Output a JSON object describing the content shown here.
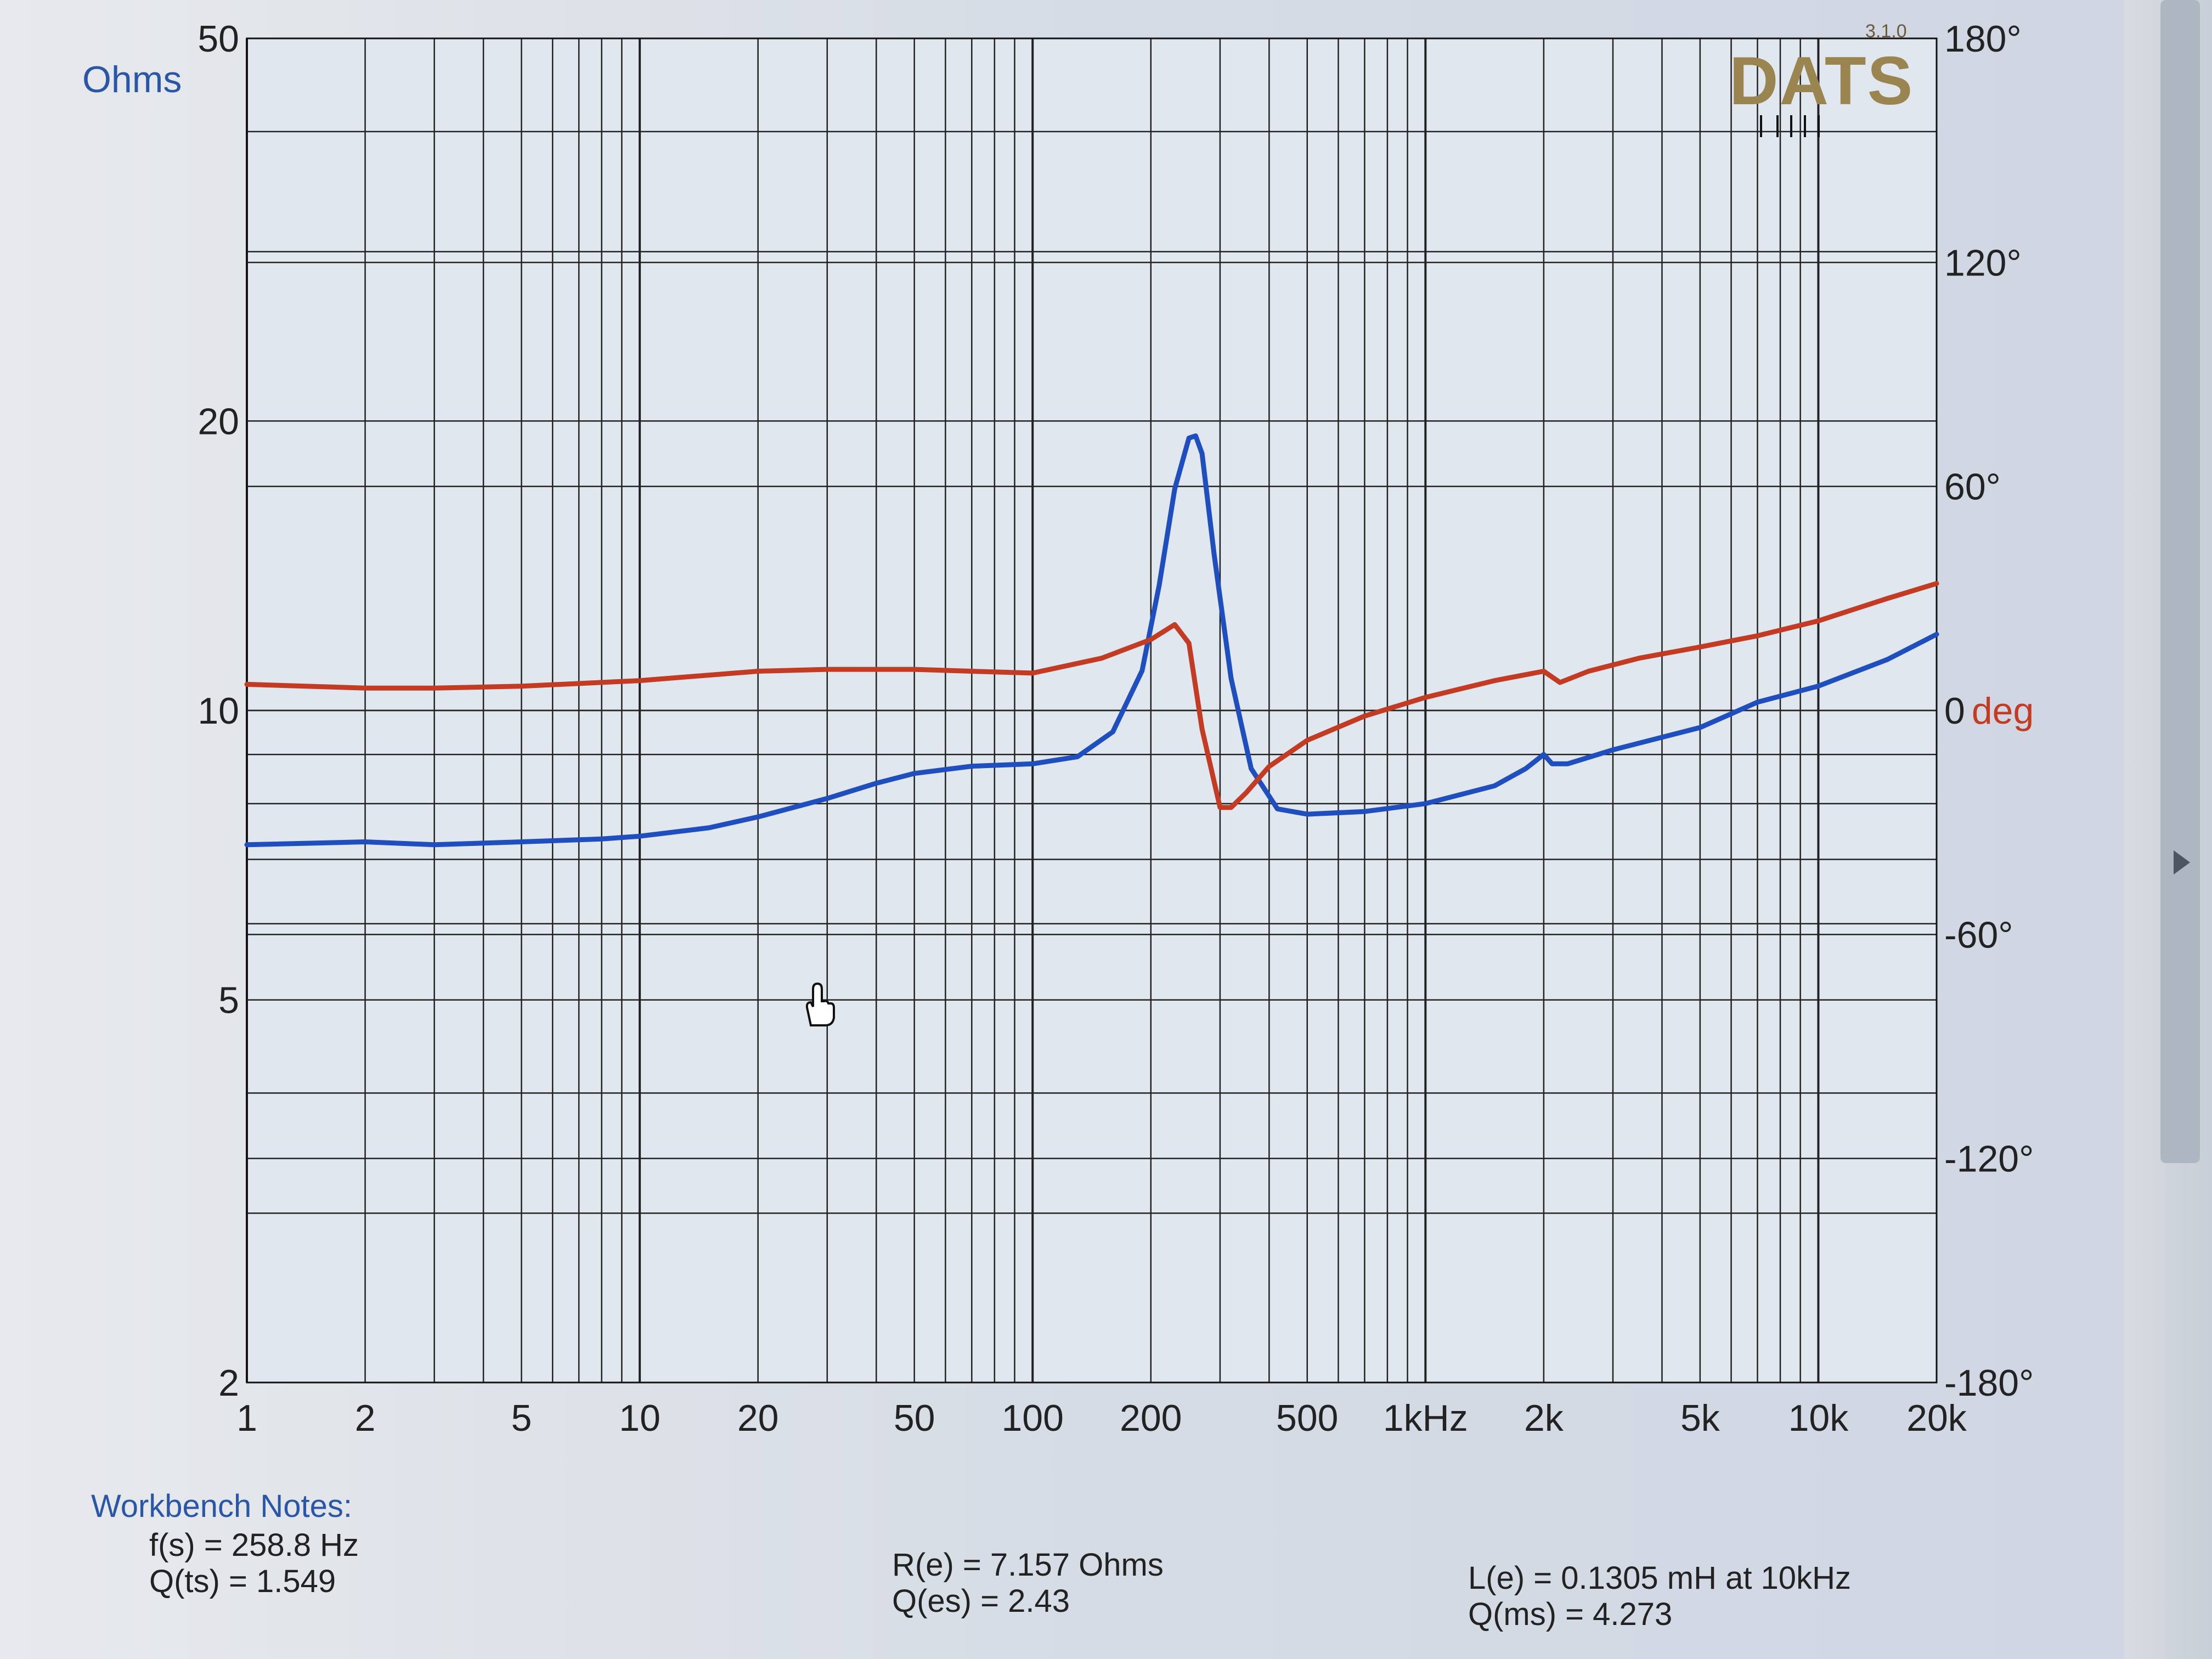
{
  "header": {
    "impedance_unit": "Ohms",
    "brand": "DATS",
    "version": "3.1.0"
  },
  "notes": {
    "title": "Workbench Notes:",
    "fs": "f(s) = 258.8 Hz",
    "qts": "Q(ts) = 1.549",
    "re": "R(e) = 7.157 Ohms",
    "qes": "Q(es) = 2.43",
    "le": "L(e) = 0.1305 mH at 10kHz",
    "qms": "Q(ms) = 4.273"
  },
  "chart_data": {
    "type": "line",
    "xscale": "log",
    "xlim": [
      1,
      20000
    ],
    "ylim": [
      2,
      50
    ],
    "y2lim": [
      -180,
      180
    ],
    "grid": true,
    "x_tick_labels": [
      "1",
      "2",
      "5",
      "10",
      "20",
      "50",
      "100",
      "200",
      "500",
      "1kHz",
      "2k",
      "5k",
      "10k",
      "20k"
    ],
    "x_tick_values": [
      1,
      2,
      5,
      10,
      20,
      50,
      100,
      200,
      500,
      1000,
      2000,
      5000,
      10000,
      20000
    ],
    "y_tick_labels": [
      "50",
      "20",
      "10",
      "5",
      "2"
    ],
    "y_tick_values": [
      50,
      20,
      10,
      5,
      2
    ],
    "y2_tick_labels": [
      "180°",
      "120°",
      "60°",
      "0",
      "-60°",
      "-120°",
      "-180°"
    ],
    "y2_tick_values": [
      180,
      120,
      60,
      0,
      -60,
      -120,
      -180
    ],
    "ylabel": "Ohms",
    "y2label": "deg",
    "series": [
      {
        "axis": "left",
        "color": "#1f4fbf",
        "x": [
          1,
          2,
          3,
          5,
          8,
          10,
          15,
          20,
          30,
          40,
          50,
          70,
          100,
          130,
          160,
          190,
          210,
          230,
          250,
          260,
          270,
          290,
          320,
          360,
          420,
          500,
          700,
          1000,
          1500,
          1800,
          2000,
          2100,
          2300,
          3000,
          5000,
          7000,
          10000,
          15000,
          20000
        ],
        "y": [
          7.25,
          7.3,
          7.25,
          7.3,
          7.35,
          7.4,
          7.55,
          7.75,
          8.1,
          8.4,
          8.6,
          8.75,
          8.8,
          8.95,
          9.5,
          11.0,
          13.5,
          17.0,
          19.2,
          19.3,
          18.5,
          14.5,
          10.8,
          8.7,
          7.9,
          7.8,
          7.85,
          8.0,
          8.35,
          8.7,
          9.0,
          8.8,
          8.8,
          9.1,
          9.6,
          10.2,
          10.6,
          11.3,
          12.0
        ]
      },
      {
        "axis": "right",
        "color": "#c23b22",
        "x": [
          1,
          2,
          3,
          5,
          10,
          20,
          30,
          50,
          70,
          100,
          150,
          200,
          230,
          250,
          270,
          300,
          320,
          350,
          400,
          500,
          700,
          1000,
          1500,
          2000,
          2200,
          2600,
          3500,
          5000,
          7000,
          10000,
          15000,
          20000
        ],
        "y": [
          7,
          6,
          6,
          6.5,
          8,
          10.5,
          11,
          11,
          10.5,
          10,
          14,
          19,
          23,
          18,
          -5,
          -26,
          -26,
          -22,
          -15,
          -8,
          -1.5,
          3.5,
          8,
          10.5,
          7.5,
          10.5,
          14,
          17,
          20,
          24,
          30,
          34
        ]
      }
    ]
  }
}
